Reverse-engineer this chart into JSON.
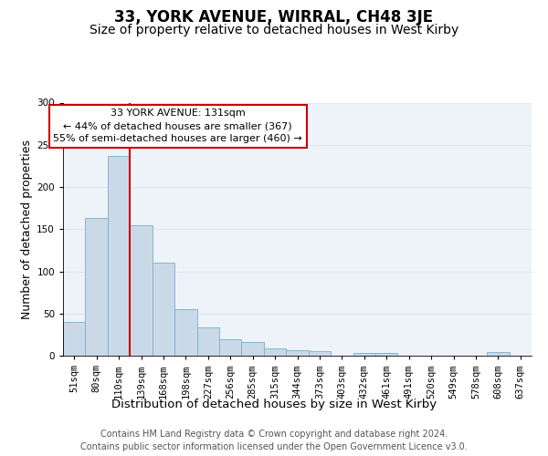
{
  "title": "33, YORK AVENUE, WIRRAL, CH48 3JE",
  "subtitle": "Size of property relative to detached houses in West Kirby",
  "xlabel": "Distribution of detached houses by size in West Kirby",
  "ylabel": "Number of detached properties",
  "categories": [
    "51sqm",
    "80sqm",
    "110sqm",
    "139sqm",
    "168sqm",
    "198sqm",
    "227sqm",
    "256sqm",
    "285sqm",
    "315sqm",
    "344sqm",
    "373sqm",
    "403sqm",
    "432sqm",
    "461sqm",
    "491sqm",
    "520sqm",
    "549sqm",
    "578sqm",
    "608sqm",
    "637sqm"
  ],
  "values": [
    40,
    163,
    237,
    155,
    110,
    55,
    34,
    19,
    16,
    9,
    6,
    5,
    0,
    3,
    3,
    0,
    0,
    0,
    0,
    4,
    0
  ],
  "bar_color": "#c9d9e8",
  "bar_edge_color": "#7aafc9",
  "grid_color": "#dce6f1",
  "background_color": "#eef2f9",
  "property_bar_index": 3,
  "property_line_color": "#cc0000",
  "annotation_text": "33 YORK AVENUE: 131sqm\n← 44% of detached houses are smaller (367)\n55% of semi-detached houses are larger (460) →",
  "annotation_box_facecolor": "#ffffff",
  "annotation_box_edgecolor": "#cc0000",
  "footer_line1": "Contains HM Land Registry data © Crown copyright and database right 2024.",
  "footer_line2": "Contains public sector information licensed under the Open Government Licence v3.0.",
  "ylim_max": 300,
  "title_fontsize": 12,
  "subtitle_fontsize": 10,
  "xlabel_fontsize": 9.5,
  "ylabel_fontsize": 9,
  "tick_fontsize": 7.5,
  "footer_fontsize": 7,
  "annot_fontsize": 8
}
